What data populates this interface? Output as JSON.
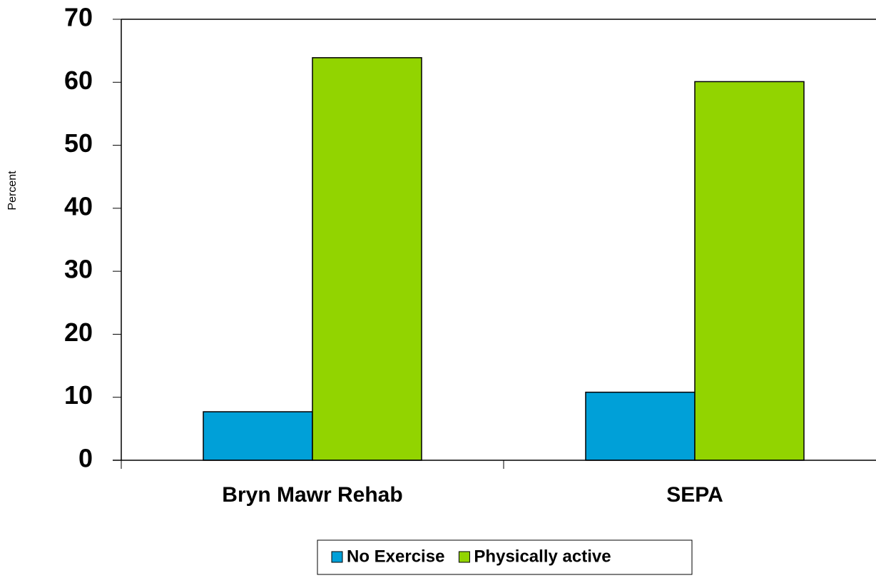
{
  "chart_data": {
    "type": "bar",
    "y_label": "Percent",
    "categories": [
      "Bryn Mawr Rehab",
      "SEPA"
    ],
    "series": [
      {
        "name": "No Exercise",
        "color": "#00a0d8",
        "values": [
          7.7,
          10.8
        ]
      },
      {
        "name": "Physically active",
        "color": "#92d400",
        "values": [
          63.9,
          60.1
        ]
      }
    ],
    "ylim": [
      0,
      70
    ],
    "yticks": [
      0,
      10,
      20,
      30,
      40,
      50,
      60,
      70
    ],
    "grid": false,
    "legend": "bottom"
  }
}
